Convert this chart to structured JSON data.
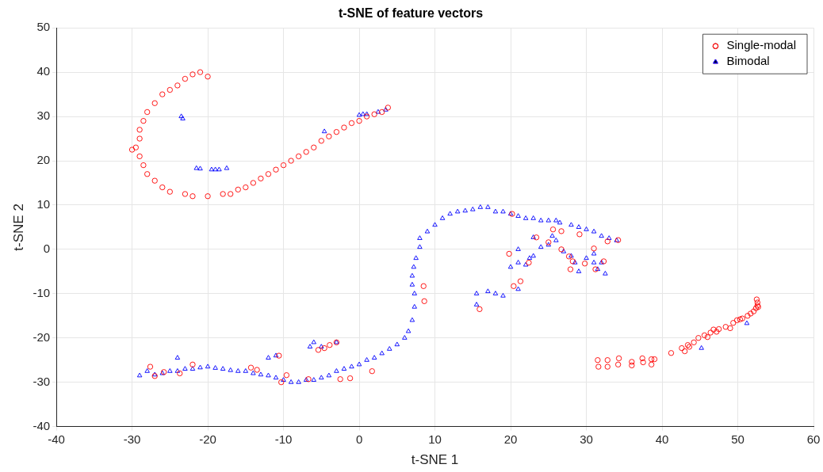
{
  "chart_data": {
    "type": "scatter",
    "title": "t-SNE of feature vectors",
    "xlabel": "t-SNE 1",
    "ylabel": "t-SNE 2",
    "xlim": [
      -40,
      60
    ],
    "xticks": [
      -40,
      -30,
      -20,
      -10,
      0,
      10,
      20,
      30,
      40,
      50,
      60
    ],
    "ylim": [
      -40,
      50
    ],
    "yticks": [
      -40,
      -30,
      -20,
      -10,
      0,
      10,
      20,
      30,
      40,
      50
    ],
    "grid": true,
    "legend": "top right",
    "series": [
      {
        "name": "Single-modal",
        "color": "#ff0000",
        "marker": "circle",
        "x": [
          -20,
          -21,
          -22,
          -23,
          -24,
          -25,
          -26,
          -27,
          -28,
          -28.5,
          -29,
          -29,
          -30,
          -29.5,
          -29,
          -28.5,
          -28,
          -27,
          -26,
          -25,
          -23,
          -22,
          -20,
          -18,
          -17,
          -16,
          -15,
          -14,
          -13,
          -12,
          -11,
          -10,
          -9,
          -8,
          -7,
          -6,
          -5,
          -4,
          -3,
          -2,
          -1,
          0,
          1,
          2,
          3,
          3.8,
          20.2,
          25.6,
          26.7,
          25,
          23.4,
          19.8,
          26.7,
          31,
          32.8,
          34.2,
          29.1,
          27.7,
          28.2,
          29.8,
          31.2,
          27.9,
          21.3,
          20.4,
          8.5,
          8.6,
          15.9,
          22.4,
          32.3,
          -27.6,
          -27,
          -25.8,
          -23.7,
          -22,
          -14.3,
          -13.5,
          -10.3,
          -9.6,
          -6.7,
          -5.4,
          -4.6,
          -3.9,
          -3,
          -10.6,
          -2.5,
          -1.2,
          1.7,
          31.5,
          31.6,
          32.8,
          32.8,
          34.3,
          34.2,
          36,
          36,
          37.4,
          37.5,
          38.6,
          38.6,
          39,
          41.2,
          42.6,
          43,
          43.4,
          43.6,
          44.2,
          44.8,
          45.6,
          46,
          46.4,
          46.8,
          47.2,
          47.5,
          48.4,
          49,
          49.4,
          49.9,
          50.3,
          50.6,
          51.3,
          51.7,
          52.1,
          52.4,
          52.6,
          52.6,
          52.5,
          52.7
        ],
        "values": [
          39,
          40,
          39.5,
          38.5,
          37,
          36,
          35,
          33,
          31,
          29,
          27,
          25,
          22.5,
          23,
          21,
          19,
          17,
          15.5,
          14,
          13,
          12.5,
          12,
          12,
          12.5,
          12.5,
          13.5,
          14,
          15,
          16,
          17,
          18,
          19,
          20,
          21,
          22,
          23,
          24.5,
          25.5,
          26.5,
          27.5,
          28.5,
          29,
          30,
          30.5,
          31,
          32,
          8,
          4.5,
          4.1,
          1.6,
          2.7,
          -1,
          0,
          0.2,
          1.8,
          2.1,
          3.4,
          -1.6,
          -2.7,
          -3.2,
          -4.5,
          -4.5,
          -7.2,
          -8.3,
          -8.3,
          -11.7,
          -13.5,
          -3,
          -2.7,
          -26.5,
          -28.6,
          -27.7,
          -28,
          -26,
          -26.7,
          -27.2,
          -30,
          -28.4,
          -29.3,
          -22.7,
          -22.3,
          -21.6,
          -21,
          -24,
          -29.3,
          -29.1,
          -27.5,
          -25,
          -26.5,
          -25,
          -26.5,
          -24.6,
          -26,
          -25.4,
          -26.2,
          -24.6,
          -25.5,
          -24.8,
          -26,
          -24.8,
          -23.4,
          -22.3,
          -23,
          -21.6,
          -22,
          -21,
          -20,
          -19.4,
          -19.8,
          -18.8,
          -18.1,
          -18.6,
          -18,
          -17.5,
          -17.8,
          -16.6,
          -16,
          -15.8,
          -15.6,
          -15,
          -14.5,
          -14,
          -13.3,
          -12.7,
          -12,
          -11.3,
          -13
        ]
      },
      {
        "name": "Bimodal",
        "color": "#0000ff",
        "marker": "triangle",
        "x": [
          -23.5,
          -23.3,
          -21.5,
          -21,
          -19.5,
          -19,
          -18.5,
          -17.5,
          -4.6,
          0,
          0.5,
          1,
          2.5,
          3.5,
          -29,
          -28,
          -27,
          -26,
          -25,
          -24,
          -23,
          -22,
          -21,
          -20,
          -19,
          -18,
          -17,
          -16,
          -15,
          -14,
          -13,
          -12,
          -11,
          -10,
          -9,
          -8,
          -7,
          -6,
          -5,
          -4,
          -3,
          -2,
          -1,
          0,
          1,
          2,
          3,
          4,
          5,
          6,
          6.5,
          7,
          7.3,
          7.3,
          7,
          7,
          7.2,
          7.5,
          8,
          8,
          9,
          10,
          11,
          12,
          13,
          14,
          15,
          16,
          17,
          18,
          19,
          20,
          21,
          22,
          23,
          24,
          25,
          26,
          26.5,
          28,
          29,
          30,
          31,
          32,
          33,
          34,
          -24,
          -12,
          -11,
          -6,
          -6.5,
          -5,
          -3,
          15.5,
          15.5,
          17,
          18,
          19,
          21,
          20,
          21,
          22,
          22.5,
          23,
          21,
          23,
          24,
          25,
          25.5,
          26,
          27,
          28,
          28.5,
          29,
          30,
          31,
          31.5,
          32,
          32.5,
          31,
          45.2,
          51.2
        ],
        "values": [
          30,
          29.5,
          18.3,
          18.2,
          18,
          18,
          18,
          18.3,
          26.6,
          30.3,
          30.5,
          30.5,
          31,
          31.5,
          -28.5,
          -27.5,
          -28.3,
          -28,
          -27.5,
          -27.5,
          -27,
          -27,
          -26.7,
          -26.5,
          -26.8,
          -27,
          -27.3,
          -27.5,
          -27.5,
          -28,
          -28.3,
          -28.5,
          -29,
          -29.5,
          -30,
          -30,
          -29.5,
          -29.5,
          -29,
          -28.5,
          -27.5,
          -27,
          -26.5,
          -26,
          -25,
          -24.5,
          -23.5,
          -22.5,
          -21.5,
          -20,
          -18.5,
          -16,
          -13,
          -10,
          -8,
          -6,
          -4,
          -2,
          0.5,
          2.5,
          4,
          5.5,
          7,
          8,
          8.5,
          8.7,
          9,
          9.5,
          9.5,
          8.5,
          8.5,
          8,
          7.5,
          7,
          7,
          6.5,
          6.5,
          6.5,
          6,
          5.5,
          5,
          4.5,
          4,
          3,
          2.5,
          2,
          -24.5,
          -24.5,
          -24,
          -21,
          -22,
          -22,
          -21,
          -10,
          -12.5,
          -9.5,
          -10,
          -10.5,
          -9,
          -4,
          -3,
          -3.5,
          -2,
          -1.5,
          0,
          2.7,
          0.5,
          1,
          3,
          2,
          -0.5,
          -1.5,
          -3,
          -5,
          -2,
          -3,
          -4.5,
          -3,
          -5.5,
          -1,
          -22.3,
          -16.7
        ]
      }
    ]
  }
}
